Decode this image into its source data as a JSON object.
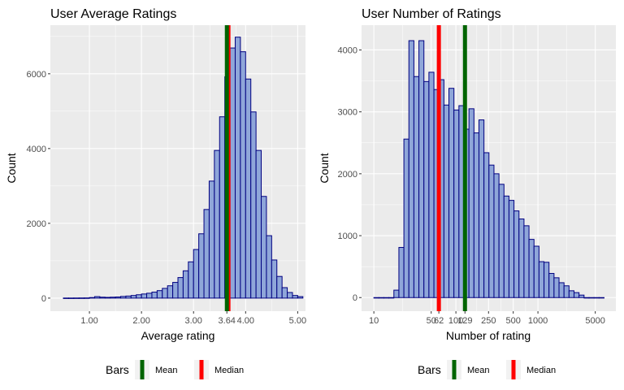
{
  "chart_data": [
    {
      "type": "bar",
      "title": "User Average Ratings",
      "xlabel": "Average rating",
      "ylabel": "Count",
      "xscale": "linear",
      "xlim": [
        0.25,
        5.15
      ],
      "ylim": [
        -350,
        7300
      ],
      "x_ticks": [
        {
          "v": 1,
          "label": "1.00"
        },
        {
          "v": 2,
          "label": "2.00"
        },
        {
          "v": 3,
          "label": "3.00"
        },
        {
          "v": 3.64,
          "label": "3.64"
        },
        {
          "v": 4,
          "label": "4.00"
        },
        {
          "v": 5,
          "label": "5.00"
        }
      ],
      "y_ticks": [
        {
          "v": 0,
          "label": "0"
        },
        {
          "v": 2000,
          "label": "2000"
        },
        {
          "v": 4000,
          "label": "4000"
        },
        {
          "v": 6000,
          "label": "6000"
        }
      ],
      "bin_edges": [
        0.5,
        0.6,
        0.7,
        0.8,
        0.9,
        1.0,
        1.1,
        1.2,
        1.3,
        1.4,
        1.5,
        1.6,
        1.7,
        1.8,
        1.9,
        2.0,
        2.1,
        2.2,
        2.3,
        2.4,
        2.5,
        2.6,
        2.7,
        2.8,
        2.9,
        3.0,
        3.1,
        3.2,
        3.3,
        3.4,
        3.5,
        3.6,
        3.7,
        3.8,
        3.9,
        4.0,
        4.1,
        4.2,
        4.3,
        4.4,
        4.5,
        4.6,
        4.7,
        4.8,
        4.9,
        5.0,
        5.1
      ],
      "counts": [
        2,
        2,
        3,
        4,
        5,
        15,
        40,
        25,
        20,
        25,
        30,
        45,
        55,
        70,
        90,
        110,
        130,
        160,
        200,
        260,
        330,
        420,
        550,
        730,
        970,
        1300,
        1720,
        2370,
        3130,
        3950,
        4850,
        5920,
        6690,
        6980,
        6590,
        5860,
        4980,
        3950,
        2720,
        1670,
        1020,
        580,
        280,
        150,
        70,
        40
      ],
      "bar_fill": "#8FA6D9",
      "bar_stroke": "#000080",
      "vlines": [
        {
          "name": "Median",
          "x": 3.67,
          "color": "#FF0000"
        },
        {
          "name": "Mean",
          "x": 3.64,
          "color": "#006400"
        }
      ],
      "legend": {
        "title": "Bars",
        "entries": [
          {
            "label": "Mean",
            "color": "#006400"
          },
          {
            "label": "Median",
            "color": "#FF0000"
          }
        ],
        "position": "bottom"
      }
    },
    {
      "type": "bar",
      "title": "User Number of Ratings",
      "xlabel": "Number of rating",
      "ylabel": "Count",
      "xscale": "log10",
      "xlim": [
        0.85,
        3.95
      ],
      "ylim": [
        -220,
        4400
      ],
      "x_ticks": [
        {
          "v": 10,
          "label": "10"
        },
        {
          "v": 50,
          "label": "50"
        },
        {
          "v": 62,
          "label": "62"
        },
        {
          "v": 100,
          "label": "100"
        },
        {
          "v": 129,
          "label": "129"
        },
        {
          "v": 250,
          "label": "250"
        },
        {
          "v": 500,
          "label": "500"
        },
        {
          "v": 1000,
          "label": "1000"
        },
        {
          "v": 5000,
          "label": "5000"
        }
      ],
      "y_ticks": [
        {
          "v": 0,
          "label": "0"
        },
        {
          "v": 1000,
          "label": "1000"
        },
        {
          "v": 2000,
          "label": "2000"
        },
        {
          "v": 3000,
          "label": "3000"
        },
        {
          "v": 4000,
          "label": "4000"
        }
      ],
      "bin_edges_log10": [
        1.0,
        1.061,
        1.122,
        1.183,
        1.244,
        1.305,
        1.366,
        1.427,
        1.488,
        1.549,
        1.61,
        1.671,
        1.732,
        1.793,
        1.854,
        1.915,
        1.976,
        2.037,
        2.098,
        2.159,
        2.22,
        2.281,
        2.342,
        2.403,
        2.464,
        2.525,
        2.586,
        2.647,
        2.708,
        2.769,
        2.83,
        2.891,
        2.952,
        3.013,
        3.074,
        3.135,
        3.196,
        3.257,
        3.318,
        3.379,
        3.44,
        3.501,
        3.562,
        3.623,
        3.684,
        3.745,
        3.806
      ],
      "counts": [
        0,
        0,
        0,
        0,
        120,
        810,
        2560,
        4150,
        3570,
        4150,
        3490,
        3640,
        3360,
        3520,
        3110,
        3380,
        3030,
        3100,
        2720,
        3050,
        2660,
        2870,
        2340,
        2140,
        2000,
        1830,
        1640,
        1570,
        1400,
        1270,
        1160,
        940,
        830,
        580,
        570,
        390,
        320,
        240,
        190,
        110,
        80,
        40,
        0,
        0,
        0,
        0
      ],
      "bar_fill": "#8FA6D9",
      "bar_stroke": "#000080",
      "vlines": [
        {
          "name": "Median",
          "x": 62,
          "color": "#FF0000"
        },
        {
          "name": "Mean",
          "x": 129,
          "color": "#006400"
        }
      ],
      "legend": {
        "title": "Bars",
        "entries": [
          {
            "label": "Mean",
            "color": "#006400"
          },
          {
            "label": "Median",
            "color": "#FF0000"
          }
        ],
        "position": "bottom"
      }
    }
  ]
}
